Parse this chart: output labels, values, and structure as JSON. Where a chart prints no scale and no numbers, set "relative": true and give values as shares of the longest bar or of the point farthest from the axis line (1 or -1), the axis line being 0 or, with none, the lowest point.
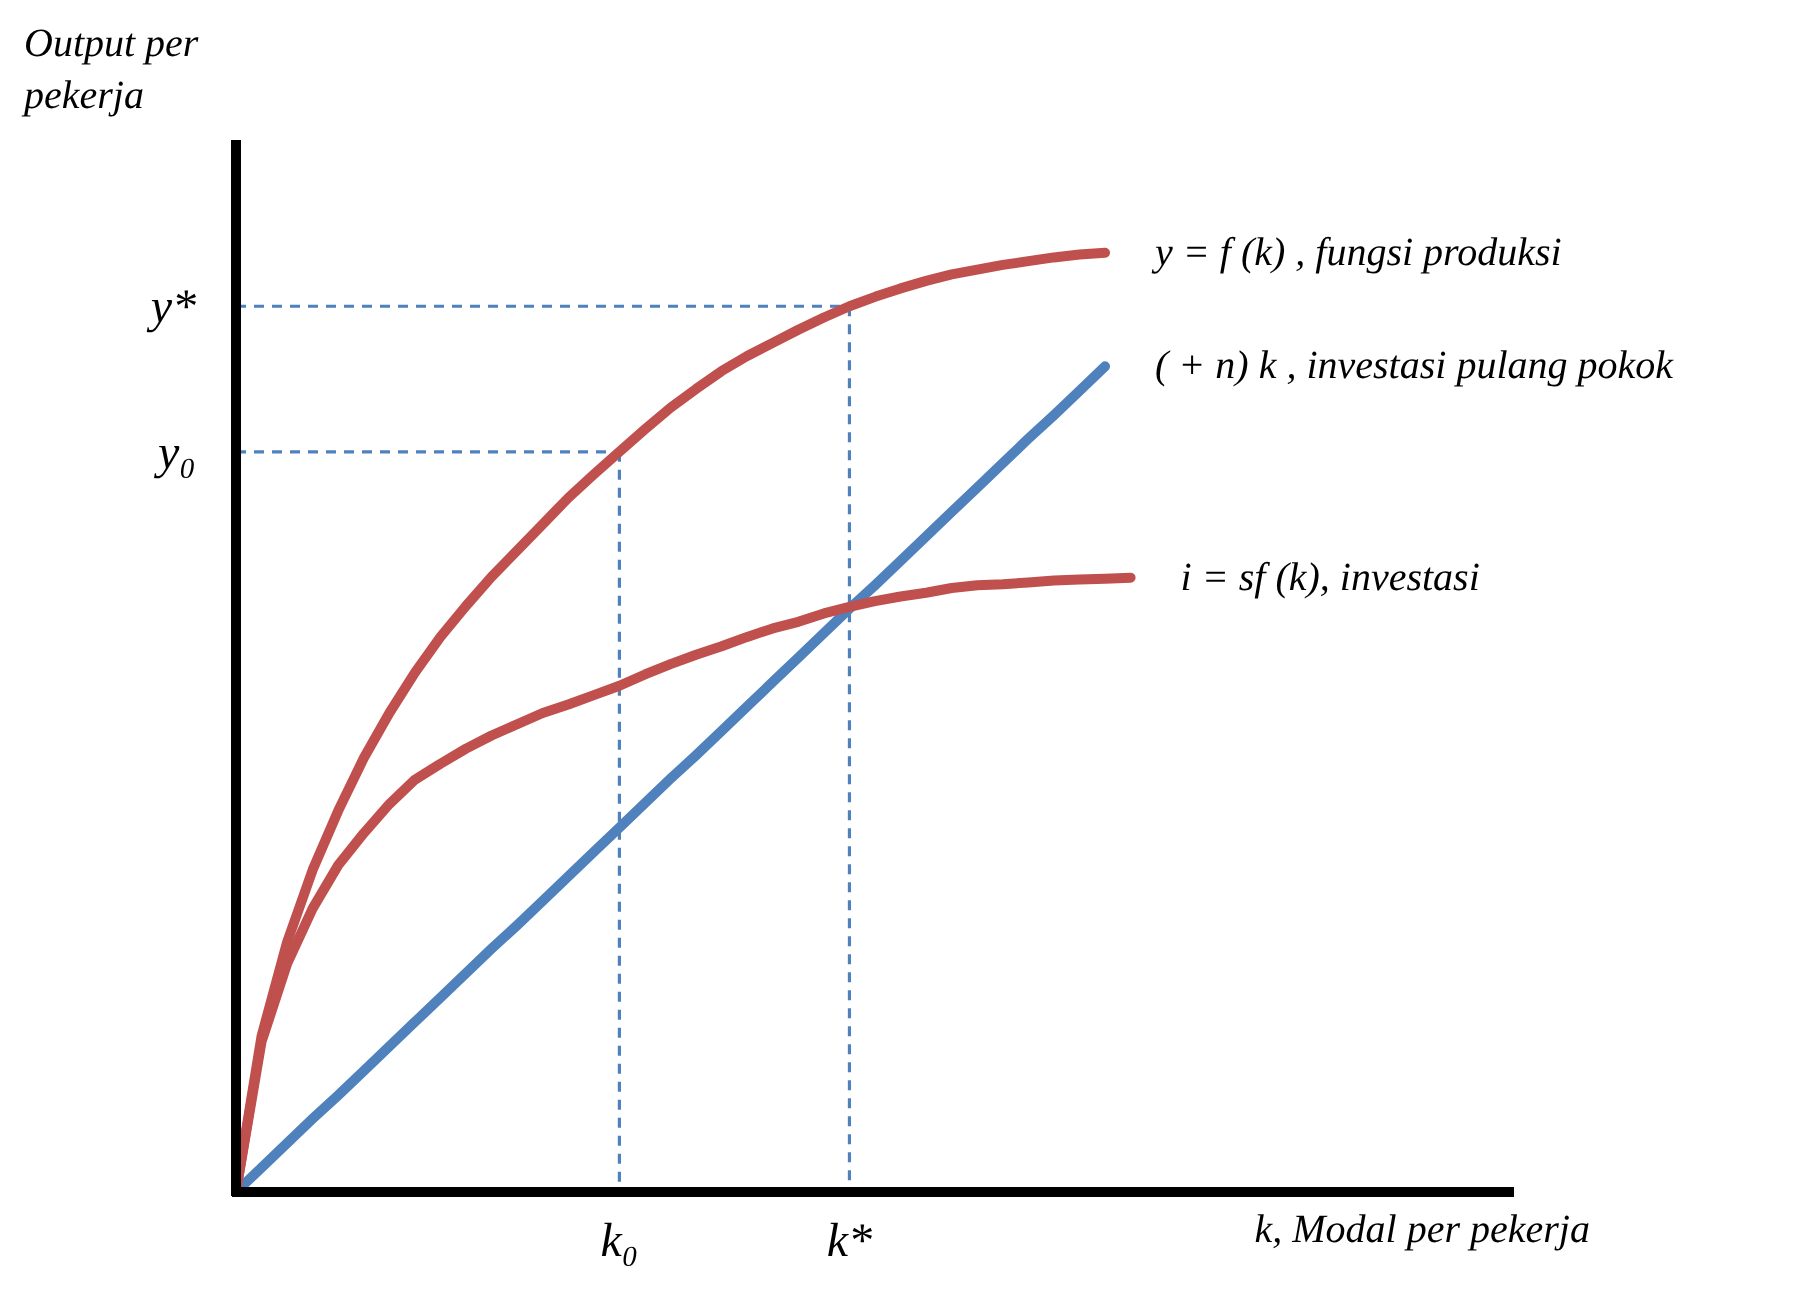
{
  "chart_data": {
    "type": "line",
    "relative": true,
    "ylabel": "Output per pekerja",
    "xlabel": "k, Modal per pekerja",
    "grid": false,
    "marker": "none",
    "categories": [
      null,
      null,
      null,
      null,
      null,
      null,
      null,
      null,
      null,
      null,
      null,
      null,
      null,
      null,
      null,
      "k₀",
      null,
      null,
      null,
      null,
      null,
      null,
      null,
      null,
      "k*",
      null,
      null,
      null,
      null,
      null,
      null,
      null,
      null,
      null,
      null,
      null,
      null,
      null,
      null,
      null,
      null,
      null,
      null,
      null,
      null,
      null,
      null,
      null,
      null,
      null,
      null
    ],
    "series": [
      {
        "name": "y = f (k) , fungsi produksi",
        "color": "#c0504d",
        "values": [
          0,
          0.166,
          0.266,
          0.343,
          0.406,
          0.462,
          0.51,
          0.553,
          0.591,
          0.624,
          0.655,
          0.683,
          0.711,
          0.739,
          0.764,
          0.788,
          0.812,
          0.835,
          0.855,
          0.874,
          0.89,
          0.904,
          0.918,
          0.931,
          0.943,
          0.953,
          0.962,
          0.97,
          0.977,
          0.982,
          0.987,
          0.991,
          0.995,
          0.998,
          1,
          null,
          null,
          null,
          null,
          null,
          null,
          null,
          null,
          null,
          null,
          null,
          null,
          null,
          null,
          null,
          null
        ]
      },
      {
        "name": "(   + n) k , investasi pulang pokok",
        "color": "#4f81bd",
        "values": [
          0,
          0.026,
          0.052,
          0.078,
          0.103,
          0.129,
          0.155,
          0.181,
          0.207,
          0.233,
          0.259,
          0.284,
          0.31,
          0.336,
          0.362,
          0.388,
          0.414,
          0.44,
          0.465,
          0.491,
          0.517,
          0.543,
          0.569,
          0.595,
          0.621,
          0.646,
          0.672,
          0.698,
          0.724,
          0.75,
          0.776,
          0.802,
          0.827,
          0.853,
          0.879,
          null,
          null,
          null,
          null,
          null,
          null,
          null,
          null,
          null,
          null,
          null,
          null,
          null,
          null,
          null,
          null
        ]
      },
      {
        "name": "i  = sf (k), investasi",
        "color": "#c0504d",
        "values": [
          0,
          0.16,
          0.243,
          0.302,
          0.348,
          0.382,
          0.413,
          0.439,
          0.456,
          0.472,
          0.486,
          0.498,
          0.51,
          0.519,
          0.529,
          0.539,
          0.551,
          0.562,
          0.572,
          0.581,
          0.591,
          0.6,
          0.607,
          0.616,
          0.623,
          0.629,
          0.634,
          0.638,
          0.643,
          0.646,
          0.647,
          0.649,
          0.651,
          0.652,
          0.653,
          0.654,
          null,
          null,
          null,
          null,
          null,
          null,
          null,
          null,
          null,
          null,
          null,
          null,
          null,
          null,
          null
        ]
      }
    ],
    "ref_lines": [
      {
        "axis": "y",
        "value": 0.943,
        "label": "y*",
        "color": "#4f81bd",
        "line_style": "dashed"
      },
      {
        "axis": "y",
        "value": 0.788,
        "label": "y₀",
        "color": "#4f81bd",
        "line_style": "dashed"
      },
      {
        "axis": "x",
        "value": "k*",
        "color": "#4f81bd",
        "line_style": "dashed"
      },
      {
        "axis": "x",
        "value": "k₀",
        "color": "#4f81bd",
        "line_style": "dashed"
      }
    ]
  }
}
